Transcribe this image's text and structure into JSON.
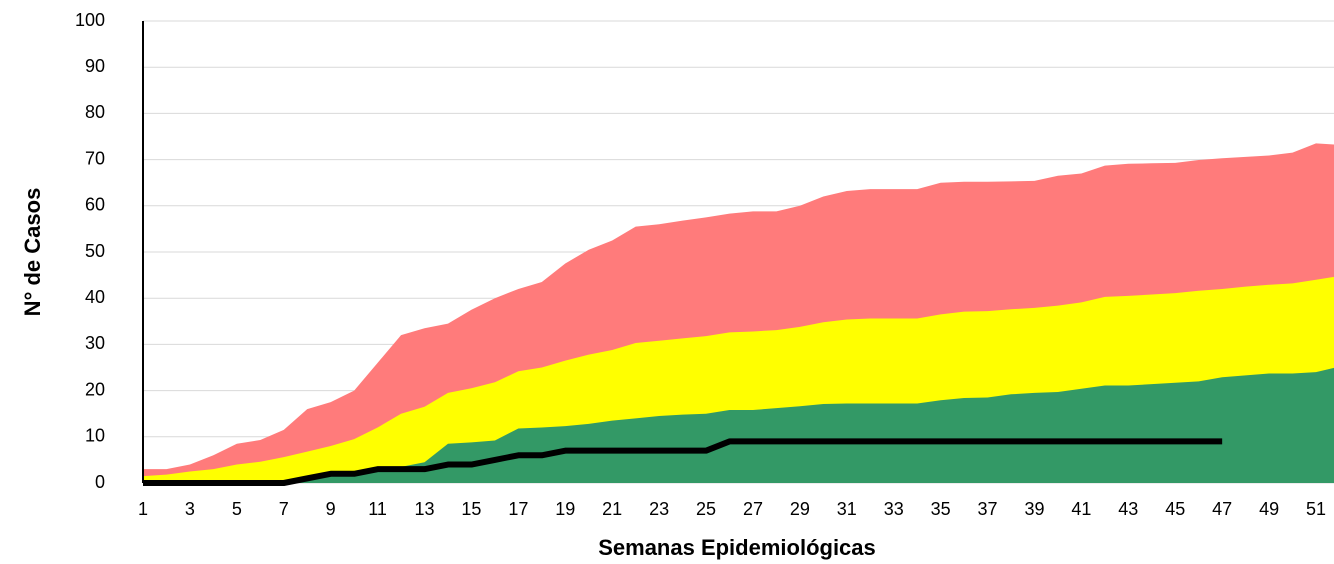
{
  "chart_data": {
    "type": "area",
    "x_label": "Semanas Epidemiológicas",
    "y_label": "N° de Casos",
    "x": [
      1,
      2,
      3,
      4,
      5,
      6,
      7,
      8,
      9,
      10,
      11,
      12,
      13,
      14,
      15,
      16,
      17,
      18,
      19,
      20,
      21,
      22,
      23,
      24,
      25,
      26,
      27,
      28,
      29,
      30,
      31,
      32,
      33,
      34,
      35,
      36,
      37,
      38,
      39,
      40,
      41,
      42,
      43,
      44,
      45,
      46,
      47,
      48,
      49,
      50,
      51,
      52
    ],
    "xlim": [
      1,
      52
    ],
    "xticks": [
      1,
      3,
      5,
      7,
      9,
      11,
      13,
      15,
      17,
      19,
      21,
      23,
      25,
      27,
      29,
      31,
      33,
      35,
      37,
      39,
      41,
      43,
      45,
      47,
      49,
      51
    ],
    "ylim": [
      0,
      100
    ],
    "yticks": [
      0,
      10,
      20,
      30,
      40,
      50,
      60,
      70,
      80,
      90,
      100
    ],
    "grid": true,
    "series": [
      {
        "color": "#ff7b7b",
        "values": [
          3,
          3,
          4,
          6,
          8.5,
          9.3,
          11.5,
          16,
          17.5,
          20,
          26,
          32,
          33.5,
          34.5,
          37.5,
          40,
          42,
          43.5,
          47.5,
          50.5,
          52.5,
          55.5,
          56,
          56.8,
          57.5,
          58.3,
          58.8,
          58.8,
          60,
          62,
          63.2,
          63.6,
          63.6,
          63.6,
          65,
          65.2,
          65.2,
          65.3,
          65.4,
          66.5,
          67,
          68.7,
          69.1,
          69.2,
          69.3,
          69.9,
          70.3,
          70.6,
          70.9,
          71.5,
          73.5,
          73.2
        ]
      },
      {
        "color": "#ffff00",
        "values": [
          1.5,
          1.8,
          2.5,
          3,
          4,
          4.6,
          5.6,
          6.8,
          8,
          9.5,
          12,
          15,
          16.5,
          19.5,
          20.5,
          21.8,
          24.2,
          25,
          26.5,
          27.8,
          28.8,
          30.3,
          30.8,
          31.3,
          31.8,
          32.6,
          32.8,
          33.1,
          33.8,
          34.8,
          35.4,
          35.6,
          35.6,
          35.6,
          36.5,
          37.1,
          37.2,
          37.6,
          37.9,
          38.4,
          39.1,
          40.3,
          40.5,
          40.8,
          41.1,
          41.6,
          42,
          42.5,
          42.9,
          43.2,
          44,
          44.8
        ]
      },
      {
        "color": "#339966",
        "values": [
          0.5,
          0.5,
          0.5,
          0.5,
          0.5,
          0.5,
          0.5,
          0.7,
          1.5,
          2,
          3,
          3.5,
          4.5,
          8.5,
          8.8,
          9.2,
          11.8,
          12,
          12.3,
          12.8,
          13.5,
          14,
          14.5,
          14.8,
          15,
          15.8,
          15.8,
          16.2,
          16.6,
          17.1,
          17.2,
          17.2,
          17.2,
          17.2,
          17.9,
          18.4,
          18.5,
          19.2,
          19.5,
          19.7,
          20.4,
          21.1,
          21.1,
          21.4,
          21.7,
          22,
          22.9,
          23.3,
          23.7,
          23.7,
          24,
          25.2
        ]
      },
      {
        "type": "line",
        "color": "#000000",
        "values": [
          0,
          0,
          0,
          0,
          0,
          0,
          0,
          1,
          2,
          2,
          3,
          3,
          3,
          4,
          4,
          5,
          6,
          6,
          7,
          7,
          7,
          7,
          7,
          7,
          7,
          9,
          9,
          9,
          9,
          9,
          9,
          9,
          9,
          9,
          9,
          9,
          9,
          9,
          9,
          9,
          9,
          9,
          9,
          9,
          9,
          9,
          9,
          null,
          null,
          null,
          null,
          null
        ]
      }
    ]
  }
}
